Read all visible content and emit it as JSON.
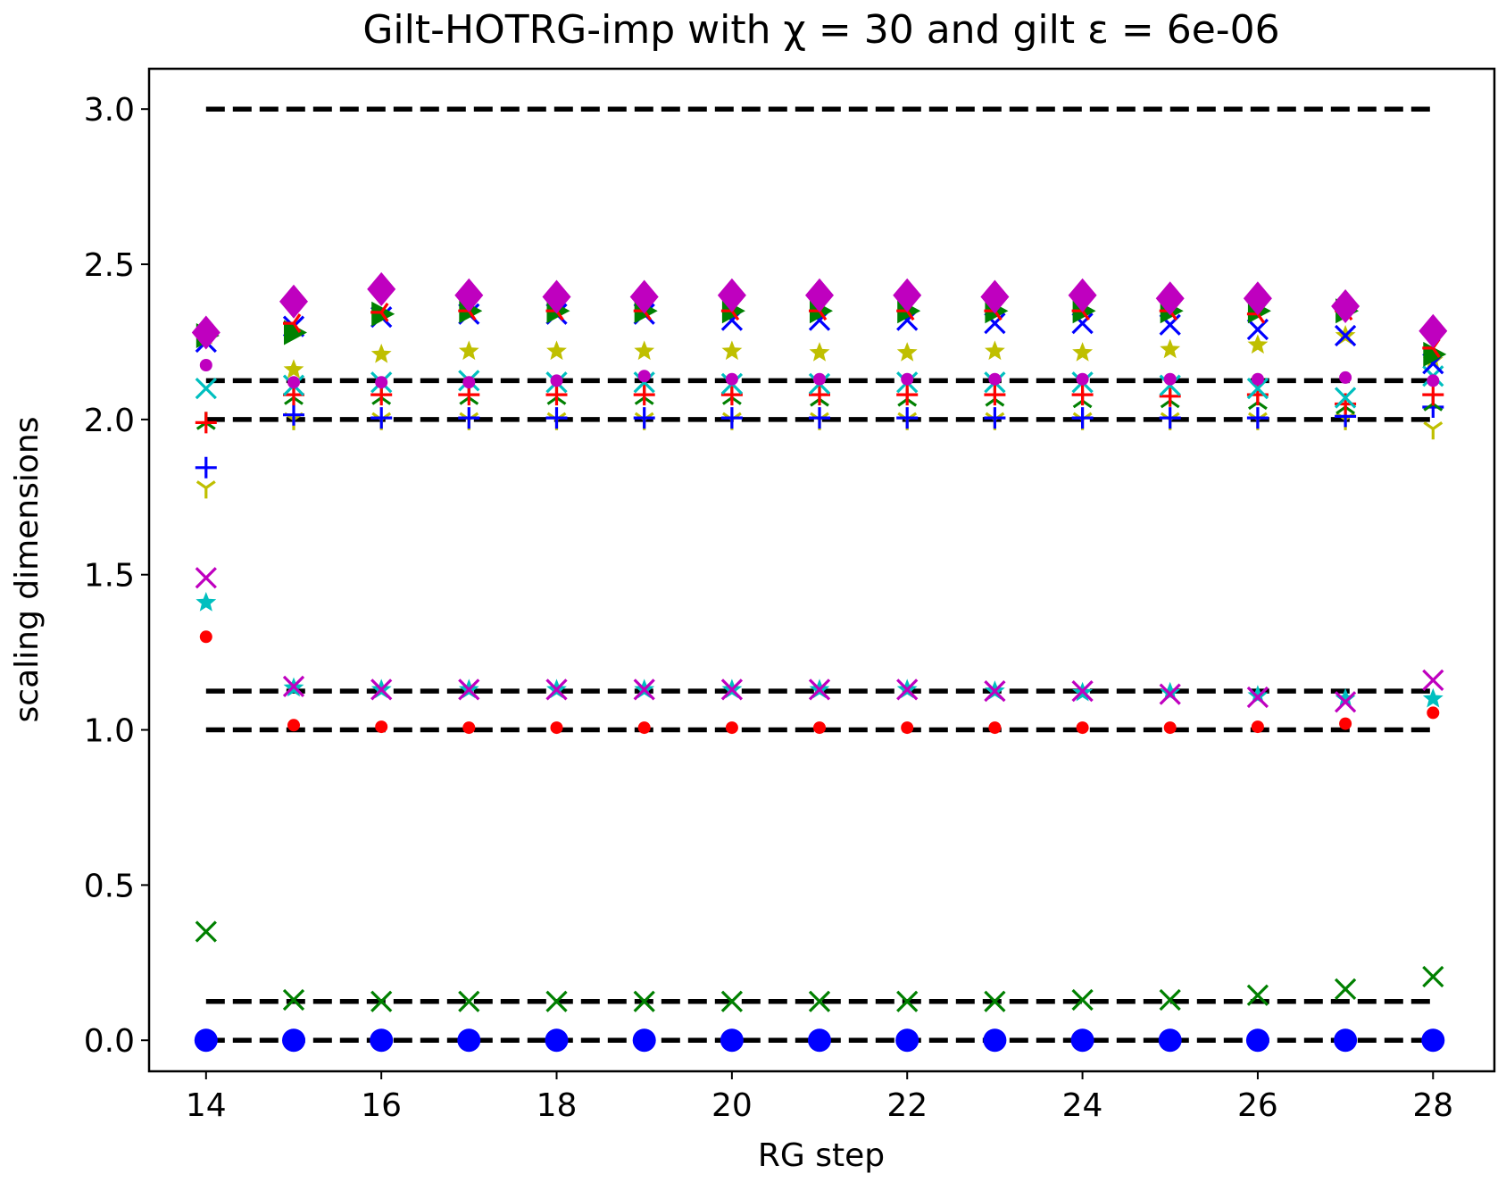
{
  "chart_data": {
    "type": "scatter",
    "title": "Gilt-HOTRG-imp with χ = 30 and gilt ε = 6e-06",
    "xlabel": "RG step",
    "ylabel": "scaling dimensions",
    "xlim": [
      13.35,
      28.7
    ],
    "ylim": [
      -0.1,
      3.13
    ],
    "xticks": [
      14,
      16,
      18,
      20,
      22,
      24,
      26,
      28
    ],
    "xtick_labels": [
      "14",
      "16",
      "18",
      "20",
      "22",
      "24",
      "26",
      "28"
    ],
    "yticks": [
      0.0,
      0.5,
      1.0,
      1.5,
      2.0,
      2.5,
      3.0
    ],
    "ytick_labels": [
      "0.0",
      "0.5",
      "1.0",
      "1.5",
      "2.0",
      "2.5",
      "3.0"
    ],
    "grid": false,
    "legend": "none",
    "x": [
      14,
      15,
      16,
      17,
      18,
      19,
      20,
      21,
      22,
      23,
      24,
      25,
      26,
      27,
      28
    ],
    "reference_lines": {
      "values": [
        0.0,
        0.125,
        1.0,
        1.125,
        2.0,
        2.125,
        3.0
      ],
      "x_range": [
        14,
        28
      ],
      "color": "#000000",
      "style": "dashed"
    },
    "series": [
      {
        "marker": "circle-large",
        "color": "#0000ff",
        "values": [
          0,
          0,
          0,
          0,
          0,
          0,
          0,
          0,
          0,
          0,
          0,
          0,
          0,
          0,
          0
        ]
      },
      {
        "marker": "x",
        "color": "#008000",
        "values": [
          0.35,
          0.13,
          0.125,
          0.125,
          0.125,
          0.125,
          0.125,
          0.125,
          0.125,
          0.125,
          0.13,
          0.13,
          0.145,
          0.165,
          0.205
        ]
      },
      {
        "marker": "dot",
        "color": "#ff0000",
        "values": [
          1.3,
          1.015,
          1.01,
          1.007,
          1.007,
          1.007,
          1.007,
          1.007,
          1.007,
          1.007,
          1.007,
          1.007,
          1.01,
          1.02,
          1.055
        ]
      },
      {
        "marker": "star",
        "color": "#00bfbf",
        "values": [
          1.41,
          1.135,
          1.13,
          1.13,
          1.13,
          1.13,
          1.13,
          1.13,
          1.13,
          1.125,
          1.12,
          1.12,
          1.11,
          1.1,
          1.1
        ]
      },
      {
        "marker": "x",
        "color": "#bf00bf",
        "values": [
          1.49,
          1.14,
          1.13,
          1.13,
          1.13,
          1.13,
          1.13,
          1.13,
          1.13,
          1.125,
          1.125,
          1.115,
          1.105,
          1.09,
          1.16
        ]
      },
      {
        "marker": "tri-down",
        "color": "#bfbf00",
        "values": [
          1.78,
          2.0,
          2.0,
          2.0,
          2.0,
          2.0,
          2.0,
          2.0,
          2.0,
          2.0,
          2.0,
          2.0,
          2.0,
          2.0,
          1.97
        ]
      },
      {
        "marker": "plus",
        "color": "#0000ff",
        "values": [
          1.845,
          2.015,
          2.005,
          2.005,
          2.005,
          2.005,
          2.005,
          2.005,
          2.005,
          2.005,
          2.005,
          2.005,
          2.005,
          2.01,
          2.04
        ]
      },
      {
        "marker": "tri-up",
        "color": "#008000",
        "values": [
          1.99,
          2.07,
          2.07,
          2.07,
          2.07,
          2.07,
          2.07,
          2.065,
          2.065,
          2.065,
          2.06,
          2.06,
          2.055,
          2.04,
          2.05
        ]
      },
      {
        "marker": "plus",
        "color": "#ff0000",
        "values": [
          1.99,
          2.08,
          2.08,
          2.08,
          2.08,
          2.08,
          2.08,
          2.08,
          2.08,
          2.08,
          2.08,
          2.075,
          2.08,
          2.05,
          2.08
        ]
      },
      {
        "marker": "x",
        "color": "#00bfbf",
        "values": [
          2.1,
          2.11,
          2.12,
          2.125,
          2.12,
          2.12,
          2.115,
          2.115,
          2.12,
          2.12,
          2.12,
          2.11,
          2.1,
          2.07,
          2.14
        ]
      },
      {
        "marker": "dot",
        "color": "#bf00bf",
        "values": [
          2.175,
          2.12,
          2.12,
          2.12,
          2.125,
          2.14,
          2.13,
          2.13,
          2.13,
          2.13,
          2.13,
          2.13,
          2.13,
          2.135,
          2.125
        ]
      },
      {
        "marker": "star",
        "color": "#bfbf00",
        "values": [
          2.27,
          2.16,
          2.21,
          2.22,
          2.22,
          2.22,
          2.22,
          2.215,
          2.215,
          2.22,
          2.215,
          2.225,
          2.24,
          2.27,
          2.19
        ]
      },
      {
        "marker": "x",
        "color": "#0000ff",
        "values": [
          2.25,
          2.3,
          2.33,
          2.34,
          2.34,
          2.34,
          2.32,
          2.32,
          2.32,
          2.31,
          2.31,
          2.305,
          2.29,
          2.27,
          2.18
        ]
      },
      {
        "marker": "triangle-right",
        "color": "#008000",
        "values": [
          2.27,
          2.28,
          2.34,
          2.35,
          2.35,
          2.35,
          2.35,
          2.35,
          2.35,
          2.35,
          2.35,
          2.35,
          2.35,
          2.35,
          2.21
        ]
      },
      {
        "marker": "tri-left",
        "color": "#ff0000",
        "values": [
          2.28,
          2.31,
          2.345,
          2.35,
          2.35,
          2.35,
          2.35,
          2.35,
          2.35,
          2.35,
          2.35,
          2.35,
          2.34,
          2.35,
          2.23
        ]
      },
      {
        "marker": "diamond",
        "color": "#bf00bf",
        "values": [
          2.28,
          2.38,
          2.42,
          2.4,
          2.395,
          2.395,
          2.4,
          2.4,
          2.4,
          2.395,
          2.4,
          2.39,
          2.39,
          2.365,
          2.285
        ]
      }
    ]
  }
}
